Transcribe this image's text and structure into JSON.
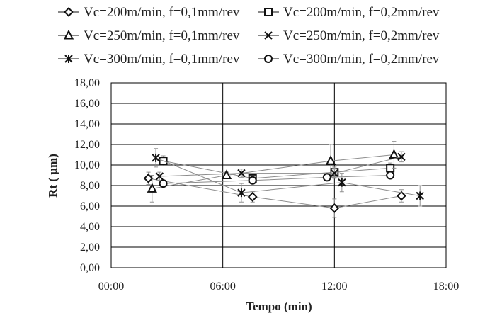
{
  "chart_data": {
    "type": "scatter",
    "title": "",
    "xlabel": "Tempo (min)",
    "ylabel": "Rt ( µm)",
    "xlim": [
      0,
      18
    ],
    "ylim": [
      0,
      18
    ],
    "x_ticks": [
      0,
      6,
      12,
      18
    ],
    "x_tick_labels": [
      "00:00",
      "06:00",
      "12:00",
      "18:00"
    ],
    "y_ticks": [
      0,
      2,
      4,
      6,
      8,
      10,
      12,
      14,
      16,
      18
    ],
    "y_tick_labels": [
      "0,00",
      "2,00",
      "4,00",
      "6,00",
      "8,00",
      "10,00",
      "12,00",
      "14,00",
      "16,00",
      "18,00"
    ],
    "grid": true,
    "legend_position": "top",
    "series": [
      {
        "name": "Vc=200m/min, f=0,1mm/rev",
        "marker": "diamond",
        "x": [
          2.0,
          7.6,
          12.0,
          15.6
        ],
        "y": [
          8.7,
          6.9,
          5.8,
          7.0
        ],
        "err": [
          0.6,
          0.5,
          0.9,
          0.6
        ]
      },
      {
        "name": "Vc=200m/min, f=0,2mm/rev",
        "marker": "square",
        "x": [
          2.8,
          7.6,
          12.0,
          15.0
        ],
        "y": [
          10.4,
          8.7,
          9.3,
          9.7
        ],
        "err": [
          0.5,
          0.4,
          0.5,
          0.5
        ]
      },
      {
        "name": "Vc=250m/min, f=0,1mm/rev",
        "marker": "triangle",
        "x": [
          2.2,
          6.2,
          11.8,
          15.2
        ],
        "y": [
          7.7,
          9.0,
          10.4,
          11.0
        ],
        "err": [
          1.3,
          0.3,
          1.6,
          1.3
        ]
      },
      {
        "name": "Vc=250m/min, f=0,2mm/rev",
        "marker": "x",
        "x": [
          2.6,
          7.0,
          12.0,
          15.6
        ],
        "y": [
          8.9,
          9.2,
          9.2,
          10.8
        ],
        "err": [
          0.4,
          0.4,
          0.5,
          0.5
        ]
      },
      {
        "name": "Vc=300m/min, f=0,1mm/rev",
        "marker": "star",
        "x": [
          2.4,
          7.0,
          12.4,
          16.6
        ],
        "y": [
          10.7,
          7.3,
          8.3,
          7.0
        ],
        "err": [
          0.9,
          0.9,
          0.9,
          1.0
        ]
      },
      {
        "name": "Vc=300m/min, f=0,2mm/rev",
        "marker": "circle",
        "x": [
          2.8,
          7.6,
          11.6,
          15.0
        ],
        "y": [
          8.2,
          8.5,
          8.8,
          9.0
        ],
        "err": [
          0.3,
          0.3,
          0.3,
          0.3
        ]
      }
    ]
  }
}
